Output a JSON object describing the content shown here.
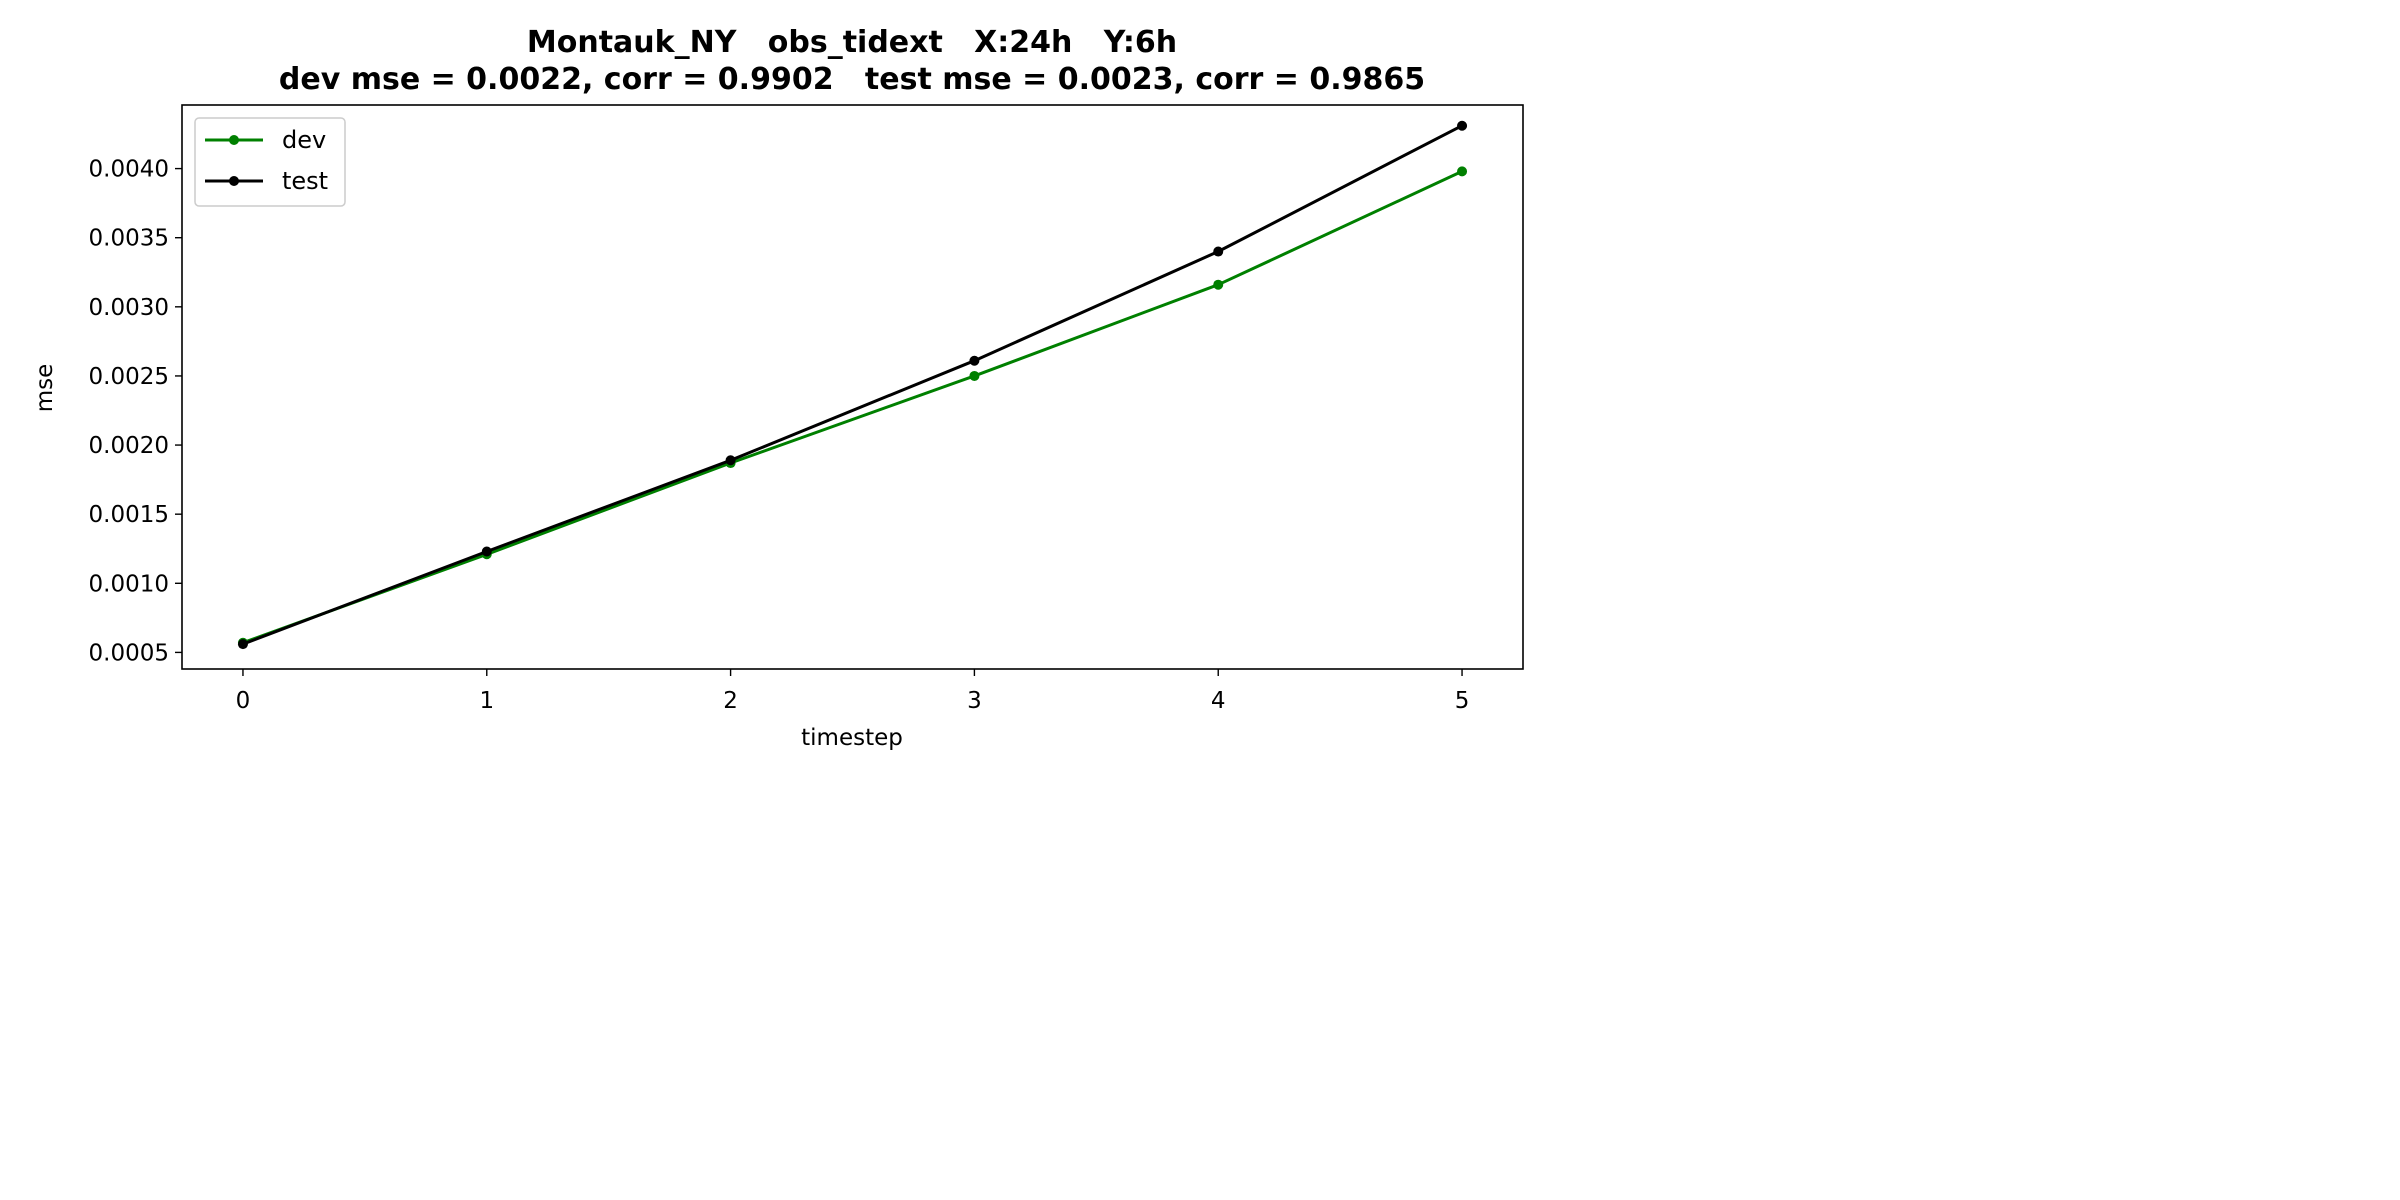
{
  "chart_data": {
    "type": "line",
    "title_line1": "Montauk_NY   obs_tidext   X:24h   Y:6h",
    "title_line2": "dev mse = 0.0022, corr = 0.9902   test mse = 0.0023, corr = 0.9865",
    "xlabel": "timestep",
    "ylabel": "mse",
    "x": [
      0,
      1,
      2,
      3,
      4,
      5
    ],
    "xlim": [
      -0.25,
      5.25
    ],
    "ylim": [
      0.00038,
      0.00446
    ],
    "xticks": [
      0,
      1,
      2,
      3,
      4,
      5
    ],
    "xtick_labels": [
      "0",
      "1",
      "2",
      "3",
      "4",
      "5"
    ],
    "yticks": [
      0.0005,
      0.001,
      0.0015,
      0.002,
      0.0025,
      0.003,
      0.0035,
      0.004
    ],
    "ytick_labels": [
      "0.0005",
      "0.0010",
      "0.0015",
      "0.0020",
      "0.0025",
      "0.0030",
      "0.0035",
      "0.0040"
    ],
    "grid": false,
    "legend_position": "upper-left",
    "series": [
      {
        "name": "dev",
        "color": "#008000",
        "values": [
          0.00057,
          0.00121,
          0.00187,
          0.0025,
          0.00316,
          0.00398
        ]
      },
      {
        "name": "test",
        "color": "#000000",
        "values": [
          0.00056,
          0.00123,
          0.00189,
          0.00261,
          0.0034,
          0.00431
        ]
      }
    ]
  }
}
